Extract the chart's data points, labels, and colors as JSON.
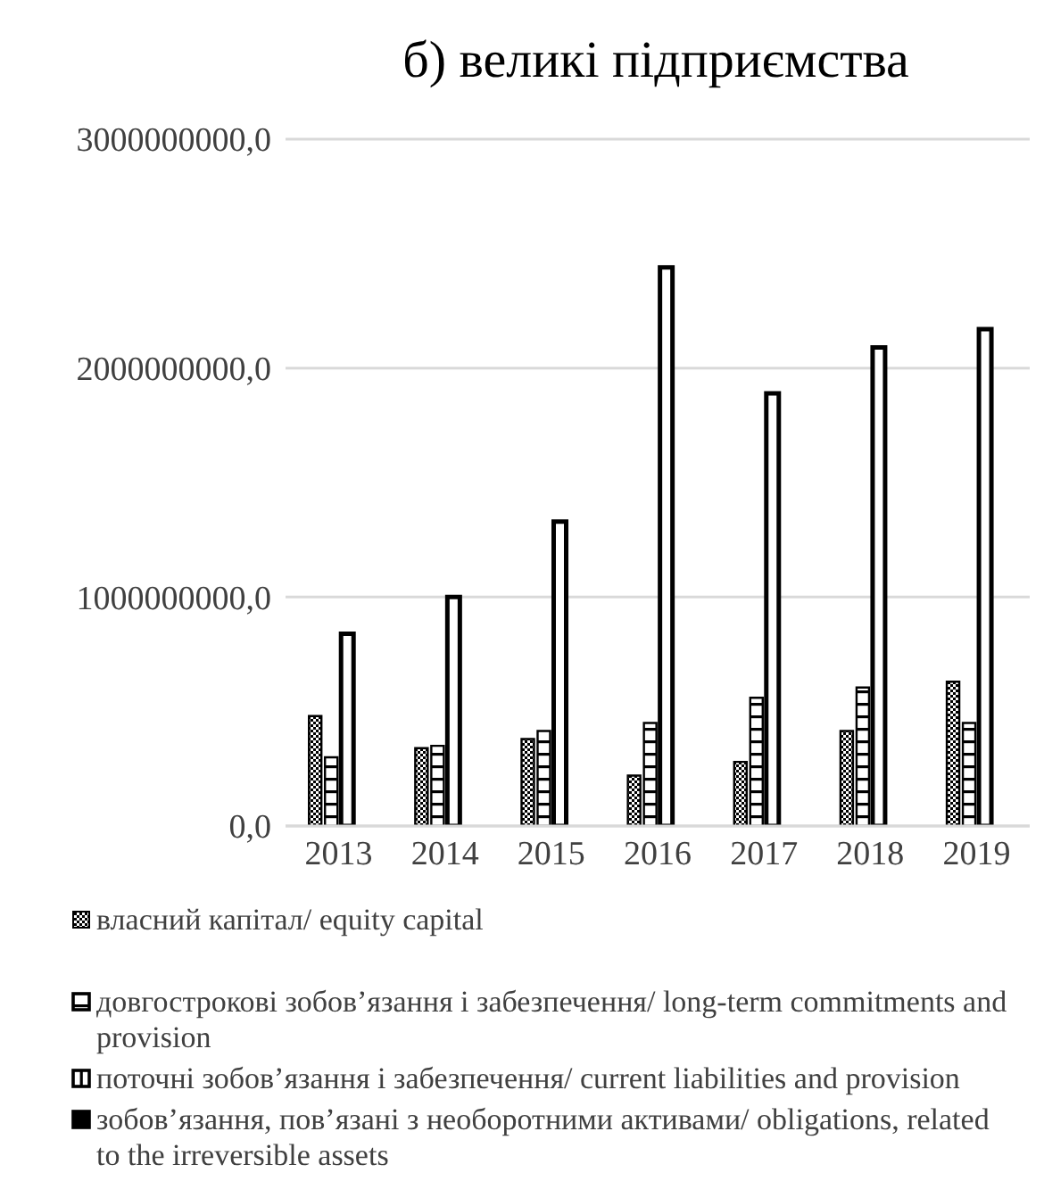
{
  "chart_data": {
    "type": "bar",
    "title": "б) великі підприємства",
    "categories": [
      "2013",
      "2014",
      "2015",
      "2016",
      "2017",
      "2018",
      "2019"
    ],
    "series": [
      {
        "name": "власний капітал/ equity capital",
        "color": "#000000",
        "values": [
          480000000,
          340000000,
          380000000,
          220000000,
          280000000,
          415000000,
          630000000
        ]
      },
      {
        "name": "довгострокові зобов’язання і забезпечення/ long-term commitments and provision",
        "color": "#000000",
        "values": [
          300000000,
          350000000,
          415000000,
          450000000,
          560000000,
          605000000,
          450000000
        ]
      },
      {
        "name": "поточні зобов’язання і забезпечення/ current liabilities and provision",
        "color": "#000000",
        "values": [
          840000000,
          1000000000,
          1330000000,
          2440000000,
          1890000000,
          2090000000,
          2170000000
        ]
      },
      {
        "name": "зобов’язання, пов’язані з необоротними активами/ obligations, related to the irreversible assets",
        "color": "#000000",
        "values": [
          0,
          0,
          0,
          0,
          0,
          0,
          0
        ]
      }
    ],
    "ylim": [
      0,
      3000000000
    ],
    "yticks": [
      {
        "value": 0,
        "label": "0,0"
      },
      {
        "value": 1000000000,
        "label": "1000000000,0"
      },
      {
        "value": 2000000000,
        "label": "2000000000,0"
      },
      {
        "value": 3000000000,
        "label": "3000000000,0"
      }
    ],
    "grid": "y",
    "legend": "bottom"
  }
}
